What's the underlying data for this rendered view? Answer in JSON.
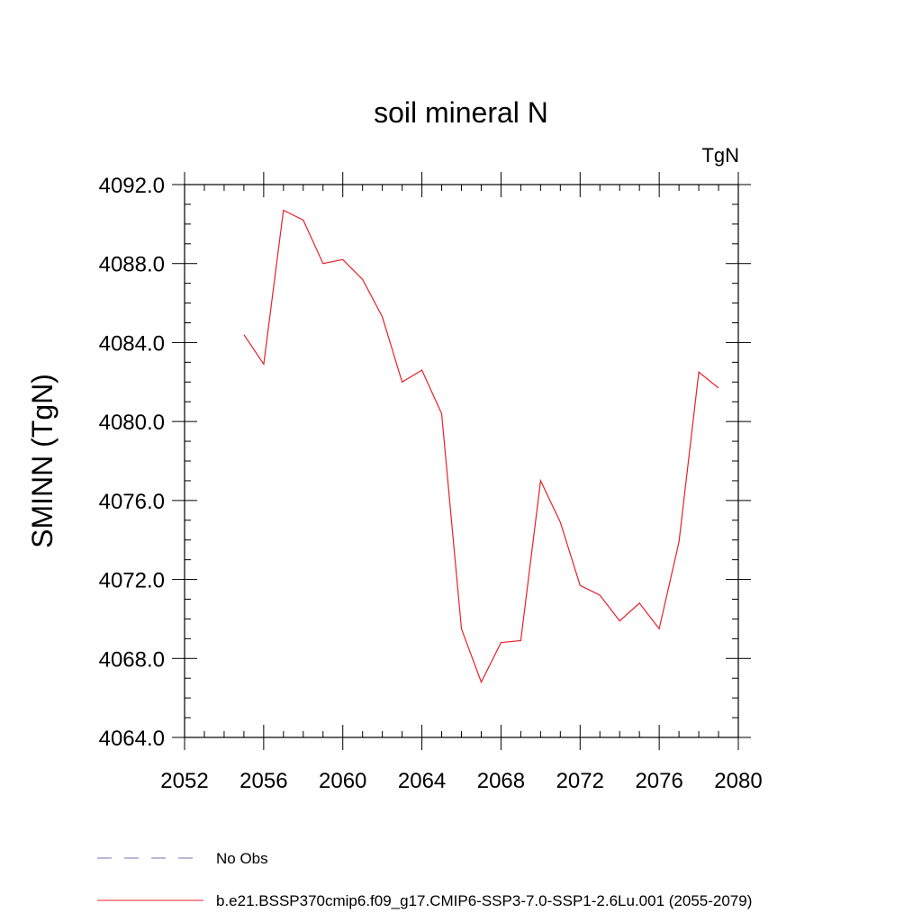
{
  "chart_data": {
    "type": "line",
    "title": "soil mineral N",
    "units_label": "TgN",
    "xlabel": "",
    "ylabel": "SMINN  (TgN)",
    "xlim": [
      2052,
      2080
    ],
    "ylim": [
      4064,
      4092
    ],
    "x_ticks": [
      2052,
      2056,
      2060,
      2064,
      2068,
      2072,
      2076,
      2080
    ],
    "x_tick_labels": [
      "2052",
      "2056",
      "2060",
      "2064",
      "2068",
      "2072",
      "2076",
      "2080"
    ],
    "y_ticks": [
      4064,
      4068,
      4072,
      4076,
      4080,
      4084,
      4088,
      4092
    ],
    "y_tick_labels": [
      "4064.0",
      "4068.0",
      "4072.0",
      "4076.0",
      "4080.0",
      "4084.0",
      "4088.0",
      "4092.0"
    ],
    "grid": false,
    "legend_position": "bottom",
    "series": [
      {
        "name": "No Obs",
        "color": "#7b6fb0",
        "dash": "dashed",
        "x": [],
        "y": []
      },
      {
        "name": "b.e21.BSSP370cmip6.f09_g17.CMIP6-SSP3-7.0-SSP1-2.6Lu.001 (2055-2079)",
        "color": "#e8202a",
        "dash": "solid",
        "x": [
          2055,
          2056,
          2057,
          2058,
          2059,
          2060,
          2061,
          2062,
          2063,
          2064,
          2065,
          2066,
          2067,
          2068,
          2069,
          2070,
          2071,
          2072,
          2073,
          2074,
          2075,
          2076,
          2077,
          2078,
          2079
        ],
        "y": [
          4084.4,
          4082.9,
          4090.7,
          4090.2,
          4088.0,
          4088.2,
          4087.2,
          4085.3,
          4082.0,
          4082.6,
          4080.4,
          4069.5,
          4066.8,
          4068.8,
          4068.9,
          4077.0,
          4074.9,
          4071.7,
          4071.2,
          4069.9,
          4070.8,
          4069.5,
          4073.9,
          4082.5,
          4081.7
        ]
      }
    ]
  }
}
